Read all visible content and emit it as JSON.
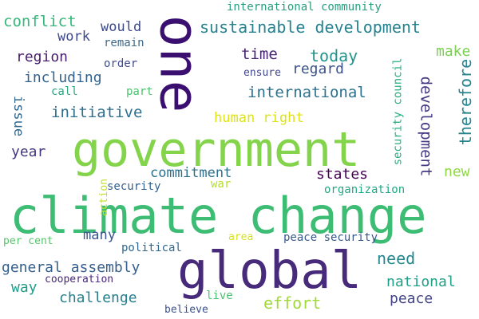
{
  "words": [
    {
      "text": "climate change",
      "color": "#3dbc74"
    },
    {
      "text": "government",
      "color": "#84d44b"
    },
    {
      "text": "global",
      "color": "#472a7a"
    },
    {
      "text": "one",
      "color": "#3b0f70",
      "vertical": true
    },
    {
      "text": "sustainable development",
      "color": "#26828e"
    },
    {
      "text": "conflict",
      "color": "#35b779"
    },
    {
      "text": "international community",
      "color": "#2a9d7c"
    },
    {
      "text": "would",
      "color": "#3e4989"
    },
    {
      "text": "work",
      "color": "#3e4a89"
    },
    {
      "text": "remain",
      "color": "#3f6a8a"
    },
    {
      "text": "region",
      "color": "#481b6d"
    },
    {
      "text": "order",
      "color": "#3e4c8a"
    },
    {
      "text": "time",
      "color": "#482475"
    },
    {
      "text": "today",
      "color": "#1f958b"
    },
    {
      "text": "make",
      "color": "#7ad151"
    },
    {
      "text": "including",
      "color": "#33638d"
    },
    {
      "text": "regard",
      "color": "#3b528b"
    },
    {
      "text": "ensure",
      "color": "#3f4788"
    },
    {
      "text": "call",
      "color": "#2ea37f"
    },
    {
      "text": "part",
      "color": "#4cc26c"
    },
    {
      "text": "international",
      "color": "#2c728e"
    },
    {
      "text": "issue",
      "color": "#31688e",
      "vertical": true
    },
    {
      "text": "initiative",
      "color": "#2e6e8e"
    },
    {
      "text": "security council",
      "color": "#29af7f",
      "vertical": true
    },
    {
      "text": "development",
      "color": "#443983",
      "vertical": true
    },
    {
      "text": "therefore",
      "color": "#25838e",
      "vertical": true
    },
    {
      "text": "human right",
      "color": "#dde318"
    },
    {
      "text": "year",
      "color": "#453781"
    },
    {
      "text": "commitment",
      "color": "#2d708e"
    },
    {
      "text": "states",
      "color": "#440154"
    },
    {
      "text": "new",
      "color": "#8fd744"
    },
    {
      "text": "security",
      "color": "#34608d"
    },
    {
      "text": "war",
      "color": "#b5de2b"
    },
    {
      "text": "action",
      "color": "#c2df23",
      "vertical": true
    },
    {
      "text": "organization",
      "color": "#22a884"
    },
    {
      "text": "many",
      "color": "#3a548c"
    },
    {
      "text": "per cent",
      "color": "#54c568"
    },
    {
      "text": "political",
      "color": "#31678e"
    },
    {
      "text": "area",
      "color": "#d8e219"
    },
    {
      "text": "peace security",
      "color": "#38598c"
    },
    {
      "text": "general assembly",
      "color": "#355f8d"
    },
    {
      "text": "need",
      "color": "#24878e"
    },
    {
      "text": "way",
      "color": "#1f9e89"
    },
    {
      "text": "cooperation",
      "color": "#482878"
    },
    {
      "text": "national",
      "color": "#1fa187"
    },
    {
      "text": "challenge",
      "color": "#277f8e"
    },
    {
      "text": "effort",
      "color": "#a0da39"
    },
    {
      "text": "peace",
      "color": "#414487"
    },
    {
      "text": "believe",
      "color": "#3b528b"
    },
    {
      "text": "live",
      "color": "#4ac16d"
    }
  ]
}
